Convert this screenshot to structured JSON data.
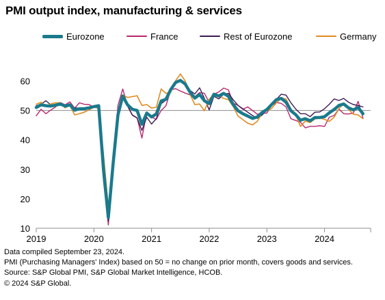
{
  "title": "PMI output index, manufacturing & services",
  "footnotes": [
    "Data compiled September 23, 2024.",
    "PMI (Purchasing Managers' Index) based on 50 = no change on prior month, covers goods and services.",
    "Source: S&P Global PMI, S&P Global Market Intelligence, HCOB.",
    "© 2024 S&P Global."
  ],
  "chart_data": {
    "type": "line",
    "ylim": [
      10,
      65
    ],
    "yticks": [
      10,
      20,
      30,
      40,
      50,
      60
    ],
    "xlim": [
      2019.0,
      2024.8
    ],
    "xticks": [
      2019,
      2020,
      2021,
      2022,
      2023,
      2024
    ],
    "reference_line": 50,
    "legend_position": "top",
    "series": [
      {
        "name": "Eurozone",
        "color": "#1a7a8c",
        "values": [
          [
            2019.0,
            51.0
          ],
          [
            2019.083,
            51.9
          ],
          [
            2019.167,
            51.6
          ],
          [
            2019.25,
            51.5
          ],
          [
            2019.333,
            51.8
          ],
          [
            2019.417,
            52.2
          ],
          [
            2019.5,
            51.5
          ],
          [
            2019.583,
            51.9
          ],
          [
            2019.667,
            50.1
          ],
          [
            2019.75,
            50.6
          ],
          [
            2019.833,
            50.6
          ],
          [
            2019.917,
            50.9
          ],
          [
            2020.0,
            51.3
          ],
          [
            2020.083,
            51.6
          ],
          [
            2020.167,
            29.7
          ],
          [
            2020.25,
            13.6
          ],
          [
            2020.333,
            31.9
          ],
          [
            2020.417,
            48.5
          ],
          [
            2020.5,
            54.9
          ],
          [
            2020.583,
            51.9
          ],
          [
            2020.667,
            50.4
          ],
          [
            2020.75,
            50.0
          ],
          [
            2020.833,
            45.3
          ],
          [
            2020.917,
            49.1
          ],
          [
            2021.0,
            47.8
          ],
          [
            2021.083,
            48.8
          ],
          [
            2021.167,
            53.2
          ],
          [
            2021.25,
            53.8
          ],
          [
            2021.333,
            57.1
          ],
          [
            2021.417,
            59.5
          ],
          [
            2021.5,
            60.2
          ],
          [
            2021.583,
            59.0
          ],
          [
            2021.667,
            56.2
          ],
          [
            2021.75,
            54.2
          ],
          [
            2021.833,
            55.4
          ],
          [
            2021.917,
            53.3
          ],
          [
            2022.0,
            52.3
          ],
          [
            2022.083,
            55.5
          ],
          [
            2022.167,
            54.9
          ],
          [
            2022.25,
            55.8
          ],
          [
            2022.333,
            54.8
          ],
          [
            2022.417,
            52.0
          ],
          [
            2022.5,
            49.9
          ],
          [
            2022.583,
            48.9
          ],
          [
            2022.667,
            48.1
          ],
          [
            2022.75,
            47.3
          ],
          [
            2022.833,
            47.8
          ],
          [
            2022.917,
            49.3
          ],
          [
            2023.0,
            50.3
          ],
          [
            2023.083,
            52.0
          ],
          [
            2023.167,
            53.7
          ],
          [
            2023.25,
            54.1
          ],
          [
            2023.333,
            52.8
          ],
          [
            2023.417,
            49.9
          ],
          [
            2023.5,
            48.6
          ],
          [
            2023.583,
            46.7
          ],
          [
            2023.667,
            47.2
          ],
          [
            2023.75,
            46.5
          ],
          [
            2023.833,
            47.6
          ],
          [
            2023.917,
            47.6
          ],
          [
            2024.0,
            47.9
          ],
          [
            2024.083,
            49.2
          ],
          [
            2024.167,
            50.3
          ],
          [
            2024.25,
            51.7
          ],
          [
            2024.333,
            52.2
          ],
          [
            2024.417,
            50.9
          ],
          [
            2024.5,
            50.2
          ],
          [
            2024.583,
            51.0
          ],
          [
            2024.667,
            48.9
          ]
        ]
      },
      {
        "name": "France",
        "color": "#b8276c",
        "values": [
          [
            2019.0,
            48.2
          ],
          [
            2019.083,
            50.4
          ],
          [
            2019.167,
            48.9
          ],
          [
            2019.25,
            50.1
          ],
          [
            2019.333,
            51.2
          ],
          [
            2019.417,
            52.7
          ],
          [
            2019.5,
            51.9
          ],
          [
            2019.583,
            52.9
          ],
          [
            2019.667,
            50.8
          ],
          [
            2019.75,
            52.6
          ],
          [
            2019.833,
            52.1
          ],
          [
            2019.917,
            52.0
          ],
          [
            2020.0,
            51.1
          ],
          [
            2020.083,
            52.0
          ],
          [
            2020.167,
            28.9
          ],
          [
            2020.25,
            11.1
          ],
          [
            2020.333,
            32.1
          ],
          [
            2020.417,
            51.7
          ],
          [
            2020.5,
            57.3
          ],
          [
            2020.583,
            51.6
          ],
          [
            2020.667,
            48.5
          ],
          [
            2020.75,
            47.5
          ],
          [
            2020.833,
            40.6
          ],
          [
            2020.917,
            49.5
          ],
          [
            2021.0,
            47.7
          ],
          [
            2021.083,
            47.0
          ],
          [
            2021.167,
            50.0
          ],
          [
            2021.25,
            51.6
          ],
          [
            2021.333,
            57.0
          ],
          [
            2021.417,
            57.4
          ],
          [
            2021.5,
            56.6
          ],
          [
            2021.583,
            55.9
          ],
          [
            2021.667,
            55.3
          ],
          [
            2021.75,
            54.7
          ],
          [
            2021.833,
            56.1
          ],
          [
            2021.917,
            55.8
          ],
          [
            2022.0,
            52.7
          ],
          [
            2022.083,
            55.5
          ],
          [
            2022.167,
            56.3
          ],
          [
            2022.25,
            57.6
          ],
          [
            2022.333,
            57.0
          ],
          [
            2022.417,
            52.5
          ],
          [
            2022.5,
            51.7
          ],
          [
            2022.583,
            50.4
          ],
          [
            2022.667,
            51.2
          ],
          [
            2022.75,
            50.0
          ],
          [
            2022.833,
            48.7
          ],
          [
            2022.917,
            49.1
          ],
          [
            2023.0,
            49.1
          ],
          [
            2023.083,
            51.7
          ],
          [
            2023.167,
            52.7
          ],
          [
            2023.25,
            52.4
          ],
          [
            2023.333,
            51.2
          ],
          [
            2023.417,
            47.2
          ],
          [
            2023.5,
            46.6
          ],
          [
            2023.583,
            46.0
          ],
          [
            2023.667,
            44.1
          ],
          [
            2023.75,
            44.6
          ],
          [
            2023.833,
            44.6
          ],
          [
            2023.917,
            44.8
          ],
          [
            2024.0,
            44.6
          ],
          [
            2024.083,
            47.7
          ],
          [
            2024.167,
            48.3
          ],
          [
            2024.25,
            50.5
          ],
          [
            2024.333,
            48.9
          ],
          [
            2024.417,
            48.8
          ],
          [
            2024.5,
            49.1
          ],
          [
            2024.583,
            53.1
          ],
          [
            2024.667,
            47.4
          ]
        ]
      },
      {
        "name": "Rest of Eurozone",
        "color": "#3b1a52",
        "values": [
          [
            2019.0,
            51.6
          ],
          [
            2019.083,
            52.1
          ],
          [
            2019.167,
            53.3
          ],
          [
            2019.25,
            51.9
          ],
          [
            2019.333,
            51.6
          ],
          [
            2019.417,
            51.8
          ],
          [
            2019.5,
            51.3
          ],
          [
            2019.583,
            51.5
          ],
          [
            2019.667,
            50.9
          ],
          [
            2019.75,
            50.8
          ],
          [
            2019.833,
            50.5
          ],
          [
            2019.917,
            51.0
          ],
          [
            2020.0,
            51.5
          ],
          [
            2020.083,
            51.2
          ],
          [
            2020.167,
            26.1
          ],
          [
            2020.25,
            12.4
          ],
          [
            2020.333,
            29.8
          ],
          [
            2020.417,
            48.0
          ],
          [
            2020.5,
            54.0
          ],
          [
            2020.583,
            51.5
          ],
          [
            2020.667,
            48.4
          ],
          [
            2020.75,
            47.4
          ],
          [
            2020.833,
            43.2
          ],
          [
            2020.917,
            47.7
          ],
          [
            2021.0,
            45.4
          ],
          [
            2021.083,
            47.2
          ],
          [
            2021.167,
            52.3
          ],
          [
            2021.25,
            53.5
          ],
          [
            2021.333,
            56.6
          ],
          [
            2021.417,
            59.2
          ],
          [
            2021.5,
            60.3
          ],
          [
            2021.583,
            59.5
          ],
          [
            2021.667,
            56.8
          ],
          [
            2021.75,
            55.6
          ],
          [
            2021.833,
            57.7
          ],
          [
            2021.917,
            54.1
          ],
          [
            2022.0,
            50.2
          ],
          [
            2022.083,
            54.8
          ],
          [
            2022.167,
            53.9
          ],
          [
            2022.25,
            55.5
          ],
          [
            2022.333,
            55.8
          ],
          [
            2022.417,
            53.6
          ],
          [
            2022.5,
            51.7
          ],
          [
            2022.583,
            50.6
          ],
          [
            2022.667,
            49.4
          ],
          [
            2022.75,
            48.3
          ],
          [
            2022.833,
            47.3
          ],
          [
            2022.917,
            48.4
          ],
          [
            2023.0,
            50.2
          ],
          [
            2023.083,
            52.1
          ],
          [
            2023.167,
            53.8
          ],
          [
            2023.25,
            55.5
          ],
          [
            2023.333,
            55.2
          ],
          [
            2023.417,
            52.6
          ],
          [
            2023.5,
            50.5
          ],
          [
            2023.583,
            48.9
          ],
          [
            2023.667,
            48.9
          ],
          [
            2023.75,
            47.9
          ],
          [
            2023.833,
            49.4
          ],
          [
            2023.917,
            49.5
          ],
          [
            2024.0,
            50.6
          ],
          [
            2024.083,
            52.1
          ],
          [
            2024.167,
            53.9
          ],
          [
            2024.25,
            53.4
          ],
          [
            2024.333,
            54.1
          ],
          [
            2024.417,
            52.8
          ],
          [
            2024.5,
            52.0
          ],
          [
            2024.583,
            51.7
          ],
          [
            2024.667,
            51.2
          ]
        ]
      },
      {
        "name": "Germany",
        "color": "#e08a1e",
        "values": [
          [
            2019.0,
            52.1
          ],
          [
            2019.083,
            52.8
          ],
          [
            2019.167,
            51.4
          ],
          [
            2019.25,
            52.2
          ],
          [
            2019.333,
            52.6
          ],
          [
            2019.417,
            52.6
          ],
          [
            2019.5,
            50.9
          ],
          [
            2019.583,
            51.7
          ],
          [
            2019.667,
            48.5
          ],
          [
            2019.75,
            48.9
          ],
          [
            2019.833,
            49.4
          ],
          [
            2019.917,
            50.2
          ],
          [
            2020.0,
            51.1
          ],
          [
            2020.083,
            50.7
          ],
          [
            2020.167,
            35.0
          ],
          [
            2020.25,
            17.4
          ],
          [
            2020.333,
            32.3
          ],
          [
            2020.417,
            47.0
          ],
          [
            2020.5,
            55.3
          ],
          [
            2020.583,
            54.4
          ],
          [
            2020.667,
            54.7
          ],
          [
            2020.75,
            55.0
          ],
          [
            2020.833,
            51.7
          ],
          [
            2020.917,
            52.0
          ],
          [
            2021.0,
            50.8
          ],
          [
            2021.083,
            51.1
          ],
          [
            2021.167,
            57.3
          ],
          [
            2021.25,
            55.8
          ],
          [
            2021.333,
            56.2
          ],
          [
            2021.417,
            60.1
          ],
          [
            2021.5,
            62.4
          ],
          [
            2021.583,
            60.0
          ],
          [
            2021.667,
            55.5
          ],
          [
            2021.75,
            52.0
          ],
          [
            2021.833,
            52.2
          ],
          [
            2021.917,
            49.9
          ],
          [
            2022.0,
            53.8
          ],
          [
            2022.083,
            55.6
          ],
          [
            2022.167,
            55.1
          ],
          [
            2022.25,
            54.1
          ],
          [
            2022.333,
            53.7
          ],
          [
            2022.417,
            51.3
          ],
          [
            2022.5,
            48.1
          ],
          [
            2022.583,
            46.9
          ],
          [
            2022.667,
            45.7
          ],
          [
            2022.75,
            45.1
          ],
          [
            2022.833,
            46.3
          ],
          [
            2022.917,
            49.0
          ],
          [
            2023.0,
            49.9
          ],
          [
            2023.083,
            50.7
          ],
          [
            2023.167,
            52.6
          ],
          [
            2023.25,
            54.2
          ],
          [
            2023.333,
            53.9
          ],
          [
            2023.417,
            50.6
          ],
          [
            2023.5,
            48.5
          ],
          [
            2023.583,
            44.6
          ],
          [
            2023.667,
            46.4
          ],
          [
            2023.75,
            45.9
          ],
          [
            2023.833,
            47.1
          ],
          [
            2023.917,
            47.4
          ],
          [
            2024.0,
            47.0
          ],
          [
            2024.083,
            46.3
          ],
          [
            2024.167,
            47.7
          ],
          [
            2024.25,
            50.6
          ],
          [
            2024.333,
            52.4
          ],
          [
            2024.417,
            50.4
          ],
          [
            2024.5,
            48.7
          ],
          [
            2024.583,
            48.5
          ],
          [
            2024.667,
            47.2
          ]
        ]
      }
    ]
  }
}
